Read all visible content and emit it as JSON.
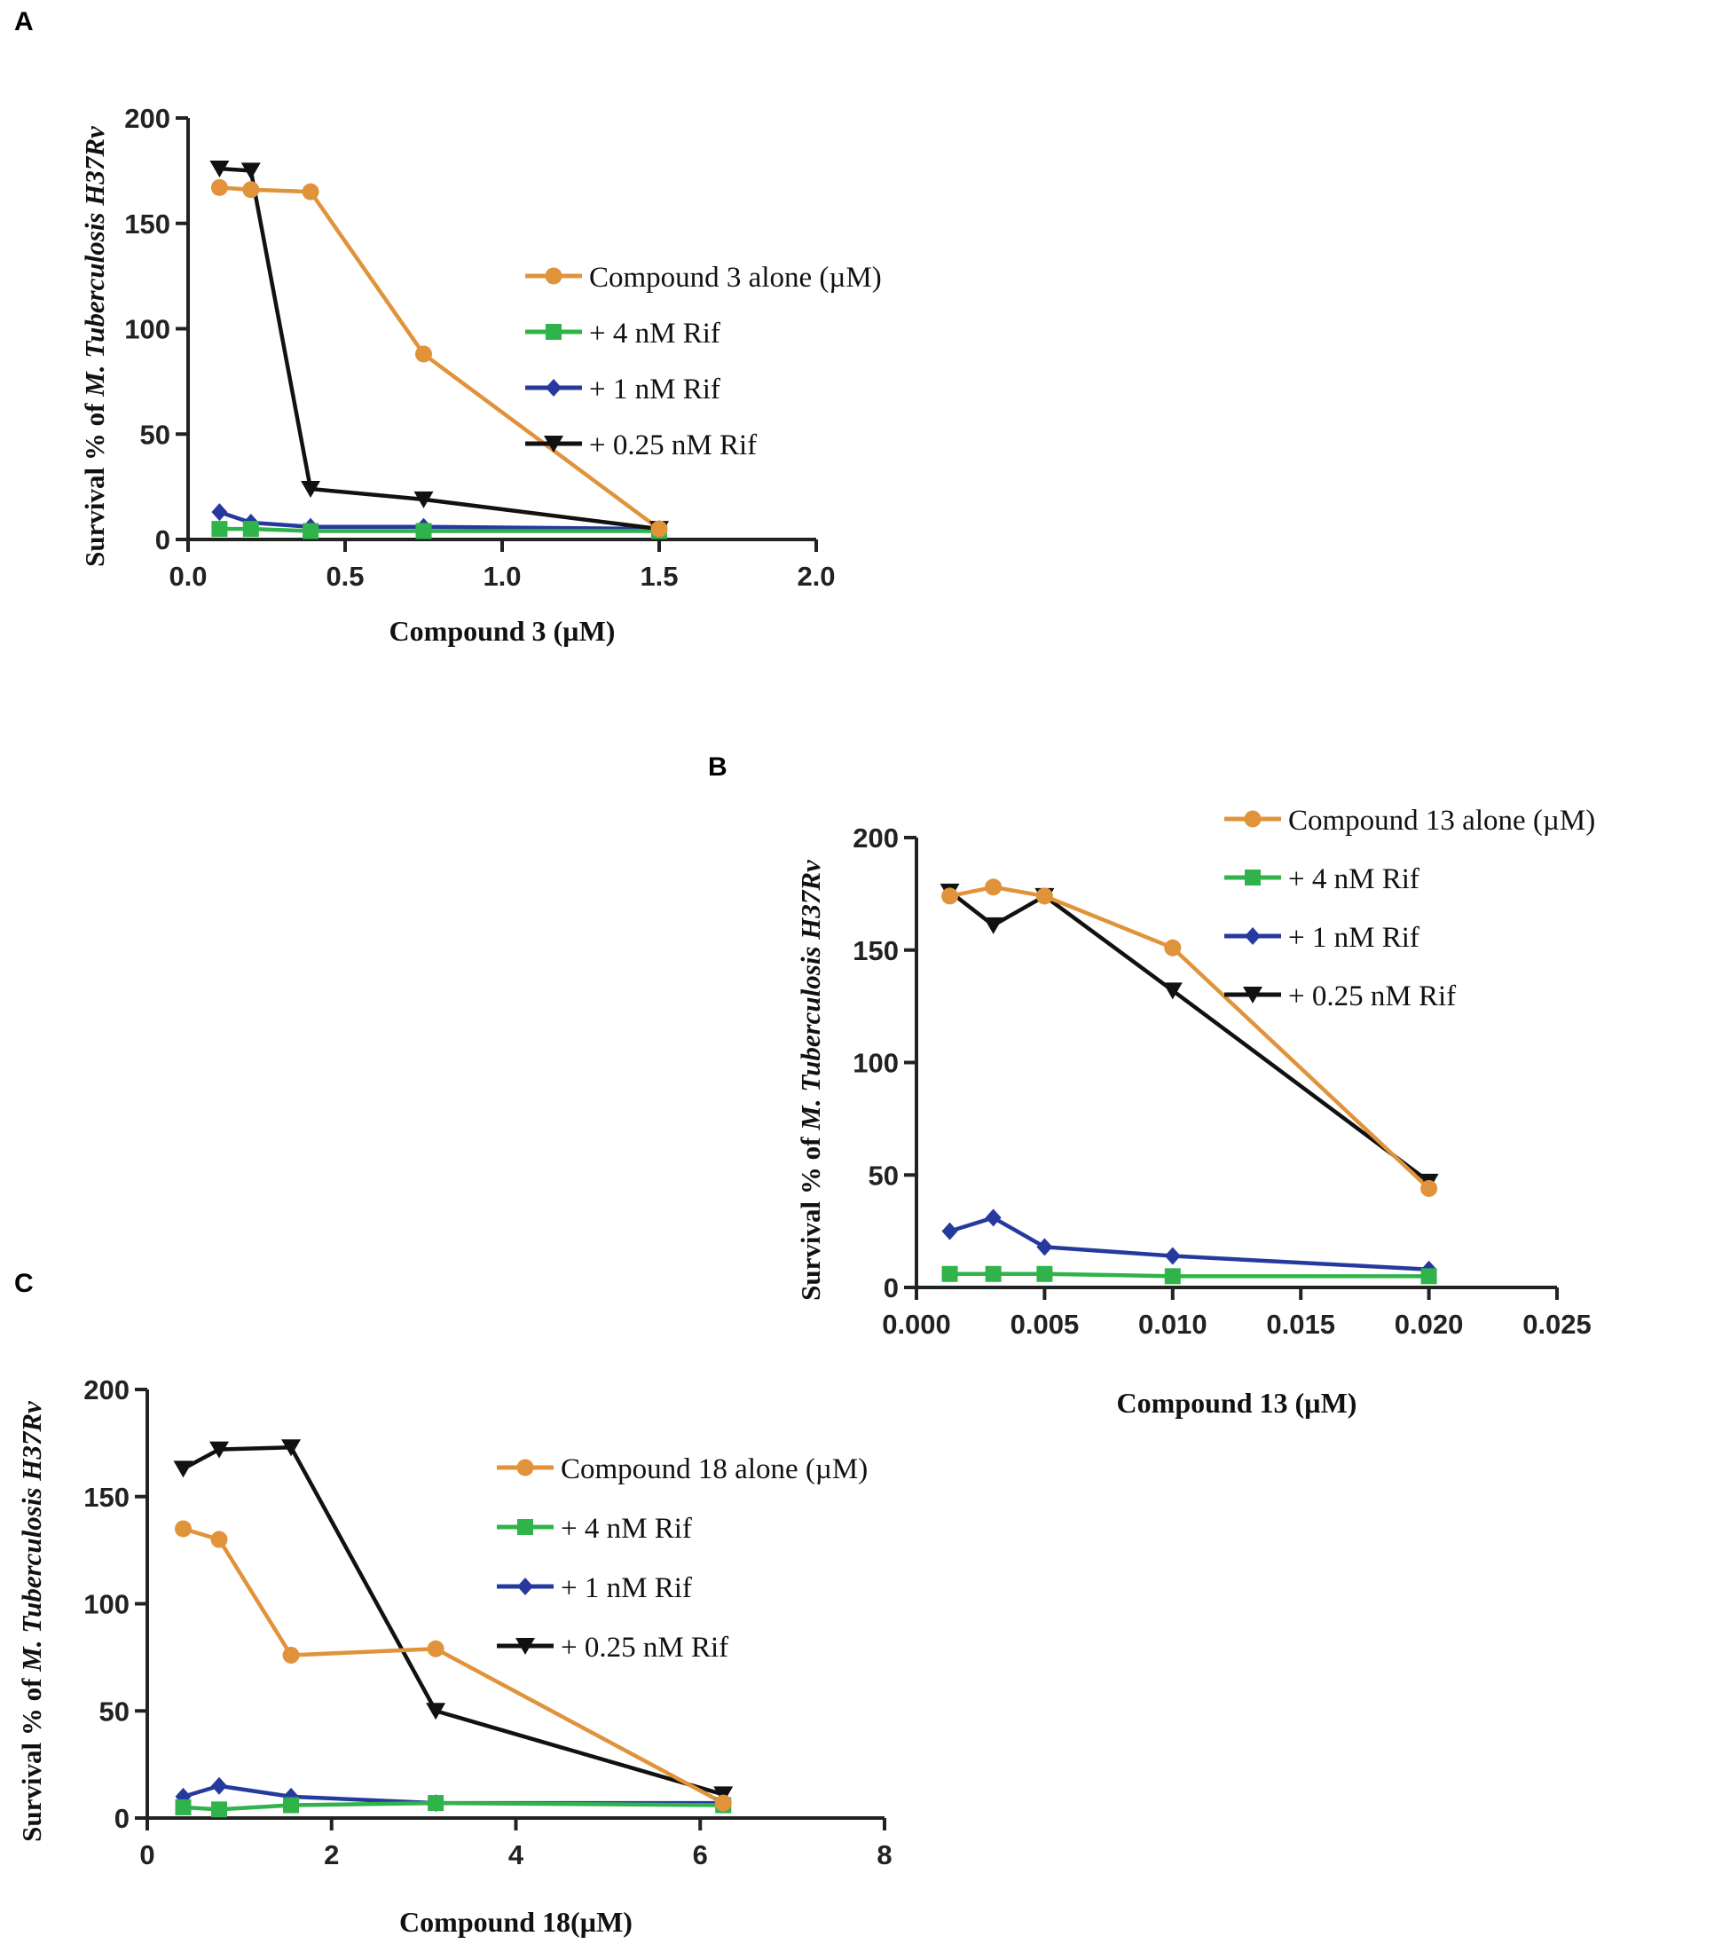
{
  "chart_data": [
    {
      "type": "line",
      "panel": "A",
      "xlabel": "Compound 3 (µM)",
      "ylabel_parts": [
        "Survival % of ",
        "M. Tuberculosis H37Rv"
      ],
      "xlim": [
        0,
        2
      ],
      "ylim": [
        0,
        200
      ],
      "xticks": [
        0,
        0.5,
        1,
        1.5,
        2
      ],
      "xtick_labels": [
        "0.0",
        "0.5",
        "1.0",
        "1.5",
        "2.0"
      ],
      "yticks": [
        0,
        50,
        100,
        150,
        200
      ],
      "ytick_labels": [
        "0",
        "50",
        "100",
        "150",
        "200"
      ],
      "legend_position": "right",
      "series": [
        {
          "name": "Compound 3 alone (µM)",
          "color": "#e0933a",
          "marker": "circle",
          "x": [
            0.1,
            0.2,
            0.39,
            0.75,
            1.5
          ],
          "y": [
            167,
            166,
            165,
            88,
            5
          ]
        },
        {
          "name": "+ 4 nM Rif",
          "color": "#2fb34a",
          "marker": "square",
          "x": [
            0.1,
            0.2,
            0.39,
            0.75,
            1.5
          ],
          "y": [
            5,
            5,
            4,
            4,
            4
          ]
        },
        {
          "name": "+ 1 nM Rif",
          "color": "#263a9e",
          "marker": "diamond",
          "x": [
            0.1,
            0.2,
            0.39,
            0.75,
            1.5
          ],
          "y": [
            13,
            8,
            6,
            6,
            5
          ]
        },
        {
          "name": "+ 0.25 nM Rif",
          "color": "#111111",
          "marker": "triangle-down",
          "x": [
            0.1,
            0.2,
            0.39,
            0.75,
            1.5
          ],
          "y": [
            176,
            175,
            24,
            19,
            5
          ]
        }
      ]
    },
    {
      "type": "line",
      "panel": "B",
      "xlabel": "Compound 13 (µM)",
      "ylabel_parts": [
        "Survival % of ",
        "M. Tuberculosis H37Rv"
      ],
      "xlim": [
        0,
        0.025
      ],
      "ylim": [
        0,
        200
      ],
      "xticks": [
        0,
        0.005,
        0.01,
        0.015,
        0.02,
        0.025
      ],
      "xtick_labels": [
        "0.000",
        "0.005",
        "0.010",
        "0.015",
        "0.020",
        "0.025"
      ],
      "yticks": [
        0,
        50,
        100,
        150,
        200
      ],
      "ytick_labels": [
        "0",
        "50",
        "100",
        "150",
        "200"
      ],
      "legend_position": "top-right",
      "series": [
        {
          "name": "Compound 13 alone (µM)",
          "color": "#e0933a",
          "marker": "circle",
          "x": [
            0.0013,
            0.003,
            0.005,
            0.01,
            0.02
          ],
          "y": [
            174,
            178,
            174,
            151,
            44
          ]
        },
        {
          "name": "+ 4 nM Rif",
          "color": "#2fb34a",
          "marker": "square",
          "x": [
            0.0013,
            0.003,
            0.005,
            0.01,
            0.02
          ],
          "y": [
            6,
            6,
            6,
            5,
            5
          ]
        },
        {
          "name": "+ 1 nM Rif",
          "color": "#263a9e",
          "marker": "diamond",
          "x": [
            0.0013,
            0.003,
            0.005,
            0.01,
            0.02
          ],
          "y": [
            25,
            31,
            18,
            14,
            8
          ]
        },
        {
          "name": "+ 0.25 nM Rif",
          "color": "#111111",
          "marker": "triangle-down",
          "x": [
            0.0013,
            0.003,
            0.005,
            0.01,
            0.02
          ],
          "y": [
            176,
            161,
            174,
            132,
            47
          ]
        }
      ]
    },
    {
      "type": "line",
      "panel": "C",
      "xlabel": "Compound 18(µM)",
      "ylabel_parts": [
        "Survival % of ",
        "M. Tuberculosis H37Rv"
      ],
      "xlim": [
        0,
        8
      ],
      "ylim": [
        0,
        200
      ],
      "xticks": [
        0,
        2,
        4,
        6,
        8
      ],
      "xtick_labels": [
        "0",
        "2",
        "4",
        "6",
        "8"
      ],
      "yticks": [
        0,
        50,
        100,
        150,
        200
      ],
      "ytick_labels": [
        "0",
        "50",
        "100",
        "150",
        "200"
      ],
      "legend_position": "right",
      "series": [
        {
          "name": "Compound 18 alone (µM)",
          "color": "#e0933a",
          "marker": "circle",
          "x": [
            0.39,
            0.78,
            1.56,
            3.13,
            6.25
          ],
          "y": [
            135,
            130,
            76,
            79,
            7
          ]
        },
        {
          "name": "+ 4 nM Rif",
          "color": "#2fb34a",
          "marker": "square",
          "x": [
            0.39,
            0.78,
            1.56,
            3.13,
            6.25
          ],
          "y": [
            5,
            4,
            6,
            7,
            6
          ]
        },
        {
          "name": "+ 1 nM Rif",
          "color": "#263a9e",
          "marker": "diamond",
          "x": [
            0.39,
            0.78,
            1.56,
            3.13,
            6.25
          ],
          "y": [
            10,
            15,
            10,
            7,
            7
          ]
        },
        {
          "name": "+ 0.25 nM Rif",
          "color": "#111111",
          "marker": "triangle-down",
          "x": [
            0.39,
            0.78,
            1.56,
            3.13,
            6.25
          ],
          "y": [
            163,
            172,
            173,
            50,
            11
          ]
        }
      ]
    }
  ]
}
